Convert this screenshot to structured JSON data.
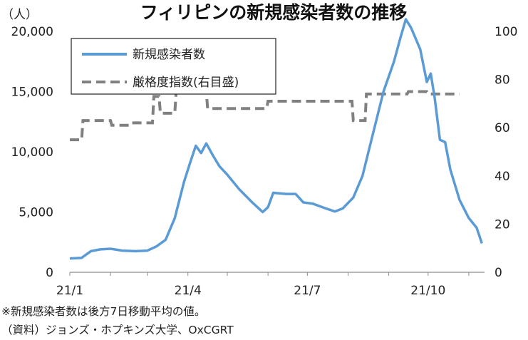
{
  "chart_data": {
    "type": "line",
    "title": "フィリピンの新規感染者数の推移",
    "ylabel_left": "（人）",
    "ylim_left": [
      0,
      20000
    ],
    "yticks_left": [
      "0",
      "5,000",
      "10,000",
      "15,000",
      "20,000"
    ],
    "yticks_right": [
      "0",
      "20",
      "40",
      "60",
      "80",
      "100"
    ],
    "ylim_right": [
      0,
      100
    ],
    "x_tick_labels": [
      "21/1",
      "21/4",
      "21/7",
      "21/10"
    ],
    "grid": false,
    "legend_position": "top-left",
    "series": [
      {
        "name": "新規感染者数",
        "axis": "left",
        "style": "solid",
        "color": "#5b9bd5",
        "points": [
          [
            "2021-01-01",
            1150
          ],
          [
            "2021-01-10",
            1200
          ],
          [
            "2021-01-17",
            1750
          ],
          [
            "2021-01-24",
            1900
          ],
          [
            "2021-02-01",
            1950
          ],
          [
            "2021-02-10",
            1800
          ],
          [
            "2021-02-20",
            1750
          ],
          [
            "2021-03-01",
            1800
          ],
          [
            "2021-03-08",
            2150
          ],
          [
            "2021-03-15",
            2700
          ],
          [
            "2021-03-22",
            4500
          ],
          [
            "2021-03-29",
            7500
          ],
          [
            "2021-04-03",
            9200
          ],
          [
            "2021-04-07",
            10500
          ],
          [
            "2021-04-11",
            9900
          ],
          [
            "2021-04-15",
            10700
          ],
          [
            "2021-04-20",
            9700
          ],
          [
            "2021-04-25",
            8800
          ],
          [
            "2021-05-01",
            8100
          ],
          [
            "2021-05-10",
            6900
          ],
          [
            "2021-05-20",
            5800
          ],
          [
            "2021-05-25",
            5300
          ],
          [
            "2021-05-28",
            5000
          ],
          [
            "2021-06-01",
            5400
          ],
          [
            "2021-06-05",
            6600
          ],
          [
            "2021-06-15",
            6500
          ],
          [
            "2021-06-22",
            6500
          ],
          [
            "2021-06-28",
            5800
          ],
          [
            "2021-07-05",
            5700
          ],
          [
            "2021-07-15",
            5300
          ],
          [
            "2021-07-22",
            5050
          ],
          [
            "2021-07-28",
            5300
          ],
          [
            "2021-08-05",
            6200
          ],
          [
            "2021-08-12",
            8000
          ],
          [
            "2021-08-20",
            11500
          ],
          [
            "2021-08-28",
            15000
          ],
          [
            "2021-09-05",
            17500
          ],
          [
            "2021-09-10",
            19500
          ],
          [
            "2021-09-14",
            21000
          ],
          [
            "2021-09-18",
            20300
          ],
          [
            "2021-09-25",
            18500
          ],
          [
            "2021-09-30",
            15800
          ],
          [
            "2021-10-03",
            16500
          ],
          [
            "2021-10-06",
            14500
          ],
          [
            "2021-10-10",
            11000
          ],
          [
            "2021-10-14",
            10800
          ],
          [
            "2021-10-18",
            8500
          ],
          [
            "2021-10-25",
            6000
          ],
          [
            "2021-11-01",
            4500
          ],
          [
            "2021-11-07",
            3700
          ],
          [
            "2021-11-11",
            2400
          ]
        ]
      },
      {
        "name": "厳格度指数(右目盛)",
        "axis": "right",
        "style": "dashed",
        "color": "#808080",
        "points": [
          [
            "2021-01-01",
            55
          ],
          [
            "2021-01-10",
            55
          ],
          [
            "2021-01-11",
            63
          ],
          [
            "2021-02-01",
            63
          ],
          [
            "2021-02-02",
            61
          ],
          [
            "2021-02-15",
            61
          ],
          [
            "2021-02-16",
            62
          ],
          [
            "2021-03-05",
            62
          ],
          [
            "2021-03-06",
            73
          ],
          [
            "2021-03-10",
            73
          ],
          [
            "2021-03-11",
            66
          ],
          [
            "2021-03-22",
            66
          ],
          [
            "2021-03-23",
            75
          ],
          [
            "2021-04-15",
            75
          ],
          [
            "2021-04-16",
            68
          ],
          [
            "2021-05-31",
            68
          ],
          [
            "2021-06-01",
            71
          ],
          [
            "2021-08-04",
            71
          ],
          [
            "2021-08-05",
            63
          ],
          [
            "2021-08-14",
            63
          ],
          [
            "2021-08-15",
            74
          ],
          [
            "2021-09-15",
            74
          ],
          [
            "2021-09-16",
            75
          ],
          [
            "2021-09-30",
            75
          ],
          [
            "2021-10-01",
            74
          ],
          [
            "2021-10-25",
            74
          ]
        ]
      }
    ],
    "notes": [
      "※新規感染者数は後方7日移動平均の値。",
      "（資料）ジョンズ・ホプキンズ大学、OxCGRT"
    ]
  }
}
